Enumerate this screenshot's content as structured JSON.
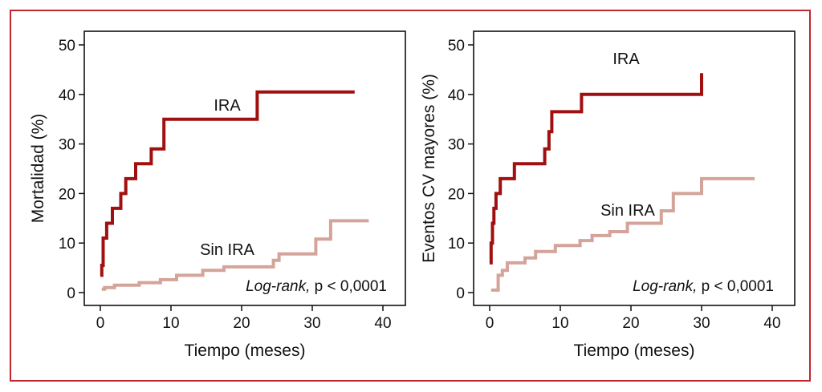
{
  "frame_color": "#c0272d",
  "chart_data": [
    {
      "type": "line",
      "step": true,
      "xlabel": "Tiempo (meses)",
      "ylabel": "Mortalidad (%)",
      "xlim": [
        0,
        40
      ],
      "ylim": [
        0,
        50
      ],
      "xticks": [
        "0",
        "10",
        "20",
        "30",
        "40"
      ],
      "yticks": [
        "0",
        "10",
        "20",
        "30",
        "40",
        "50"
      ],
      "grid": false,
      "annotation": {
        "italic": "Log-rank,",
        "rest": "p < 0,0001"
      },
      "series": [
        {
          "name": "IRA",
          "color": "#a01010",
          "x": [
            0,
            0.2,
            0.4,
            0.9,
            1.7,
            2.9,
            3.6,
            5.0,
            7.2,
            9.0,
            22.2,
            36.0
          ],
          "y": [
            3.5,
            5.5,
            11,
            14,
            17,
            20,
            23,
            26,
            29,
            35,
            40.5,
            40.5
          ]
        },
        {
          "name": "Sin IRA",
          "color": "#d4a49a",
          "x": [
            0.2,
            0.6,
            2.0,
            5.5,
            8.5,
            10.8,
            14.5,
            17.5,
            24.5,
            25.3,
            30.5,
            32.6,
            38.0
          ],
          "y": [
            0.7,
            1.0,
            1.5,
            2.0,
            2.6,
            3.5,
            4.5,
            5.2,
            6.5,
            7.8,
            10.8,
            14.5,
            14.5
          ]
        }
      ]
    },
    {
      "type": "line",
      "step": true,
      "xlabel": "Tiempo (meses)",
      "ylabel": "Eventos CV mayores (%)",
      "xlim": [
        0,
        40
      ],
      "ylim": [
        0,
        50
      ],
      "xticks": [
        "0",
        "10",
        "20",
        "30",
        "40"
      ],
      "yticks": [
        "0",
        "10",
        "20",
        "30",
        "40",
        "50"
      ],
      "grid": false,
      "annotation": {
        "italic": "Log-rank,",
        "rest": "p < 0,0001"
      },
      "series": [
        {
          "name": "IRA",
          "color": "#a01010",
          "x": [
            0,
            0.2,
            0.4,
            0.6,
            0.9,
            1.5,
            3.5,
            7.8,
            8.4,
            8.8,
            13.0,
            30.0
          ],
          "y": [
            6,
            10,
            14,
            17,
            20,
            23,
            26,
            29,
            32.5,
            36.5,
            40,
            44.3
          ]
        },
        {
          "name": "Sin IRA",
          "color": "#d4a49a",
          "x": [
            0.2,
            1.2,
            1.8,
            2.5,
            5.0,
            6.5,
            9.3,
            12.8,
            14.5,
            17.0,
            19.5,
            24.3,
            26.0,
            30.0,
            37.5
          ],
          "y": [
            0.5,
            3.5,
            4.5,
            6.0,
            7.0,
            8.3,
            9.5,
            10.5,
            11.5,
            12.3,
            14.0,
            16.5,
            20.0,
            23.0,
            23.0
          ]
        }
      ]
    }
  ]
}
